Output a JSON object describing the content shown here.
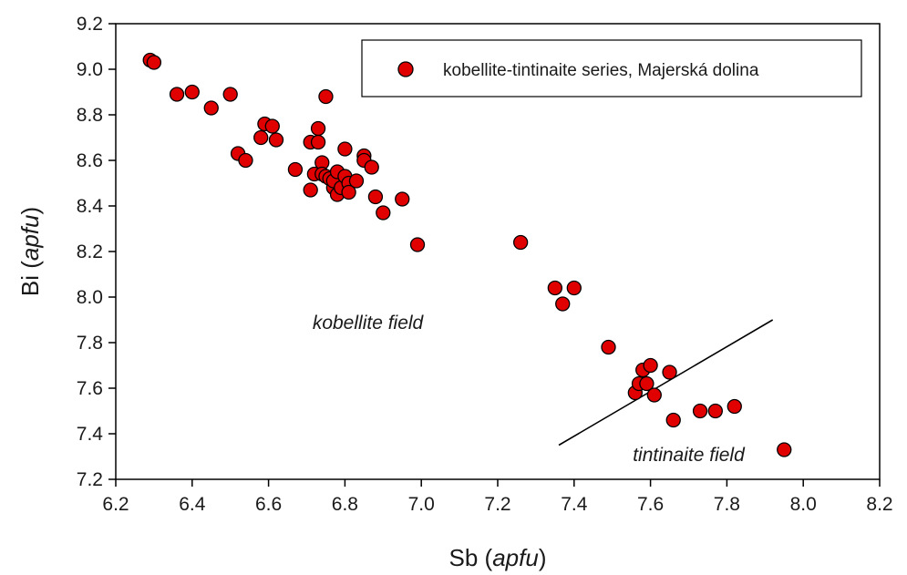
{
  "chart_data": {
    "type": "scatter",
    "xlabel_main": "Sb (",
    "xlabel_unit": "apfu",
    "xlabel_close": ")",
    "ylabel_main": "Bi (",
    "ylabel_unit": "apfu",
    "ylabel_close": ")",
    "xlim": [
      6.2,
      8.2
    ],
    "ylim": [
      7.2,
      9.2
    ],
    "xticks": [
      "6.2",
      "6.4",
      "6.6",
      "6.8",
      "7.0",
      "7.2",
      "7.4",
      "7.6",
      "7.8",
      "8.0",
      "8.2"
    ],
    "yticks": [
      "7.2",
      "7.4",
      "7.6",
      "7.8",
      "8.0",
      "8.2",
      "8.4",
      "8.6",
      "8.8",
      "9.0",
      "9.2"
    ],
    "grid": false,
    "legend_position": "top-right",
    "marker_color": "#e00000",
    "series": [
      {
        "name": "kobellite-tintinaite series, Majerská dolina",
        "points": [
          [
            6.29,
            9.04
          ],
          [
            6.3,
            9.03
          ],
          [
            6.36,
            8.89
          ],
          [
            6.4,
            8.9
          ],
          [
            6.45,
            8.83
          ],
          [
            6.5,
            8.89
          ],
          [
            6.52,
            8.63
          ],
          [
            6.54,
            8.6
          ],
          [
            6.58,
            8.7
          ],
          [
            6.59,
            8.76
          ],
          [
            6.61,
            8.75
          ],
          [
            6.62,
            8.69
          ],
          [
            6.67,
            8.56
          ],
          [
            6.71,
            8.68
          ],
          [
            6.71,
            8.47
          ],
          [
            6.72,
            8.54
          ],
          [
            6.73,
            8.74
          ],
          [
            6.73,
            8.68
          ],
          [
            6.74,
            8.59
          ],
          [
            6.74,
            8.54
          ],
          [
            6.75,
            8.88
          ],
          [
            6.75,
            8.53
          ],
          [
            6.76,
            8.52
          ],
          [
            6.77,
            8.48
          ],
          [
            6.77,
            8.51
          ],
          [
            6.78,
            8.55
          ],
          [
            6.78,
            8.45
          ],
          [
            6.79,
            8.48
          ],
          [
            6.8,
            8.65
          ],
          [
            6.8,
            8.53
          ],
          [
            6.81,
            8.5
          ],
          [
            6.81,
            8.46
          ],
          [
            6.83,
            8.51
          ],
          [
            6.85,
            8.62
          ],
          [
            6.85,
            8.6
          ],
          [
            6.87,
            8.57
          ],
          [
            6.88,
            8.44
          ],
          [
            6.9,
            8.37
          ],
          [
            6.95,
            8.43
          ],
          [
            6.99,
            8.23
          ],
          [
            7.26,
            8.24
          ],
          [
            7.35,
            8.04
          ],
          [
            7.37,
            7.97
          ],
          [
            7.4,
            8.04
          ],
          [
            7.49,
            7.78
          ],
          [
            7.56,
            7.58
          ],
          [
            7.57,
            7.62
          ],
          [
            7.58,
            7.68
          ],
          [
            7.59,
            7.62
          ],
          [
            7.6,
            7.7
          ],
          [
            7.61,
            7.57
          ],
          [
            7.65,
            7.67
          ],
          [
            7.66,
            7.46
          ],
          [
            7.73,
            7.5
          ],
          [
            7.77,
            7.5
          ],
          [
            7.82,
            7.52
          ],
          [
            7.95,
            7.33
          ]
        ]
      }
    ],
    "boundary_line": [
      [
        7.36,
        7.35
      ],
      [
        7.92,
        7.9
      ]
    ],
    "annotations": [
      {
        "text": "kobellite field",
        "x": 6.86,
        "y": 7.86
      },
      {
        "text": "tintinaite field",
        "x": 7.7,
        "y": 7.28
      }
    ]
  }
}
